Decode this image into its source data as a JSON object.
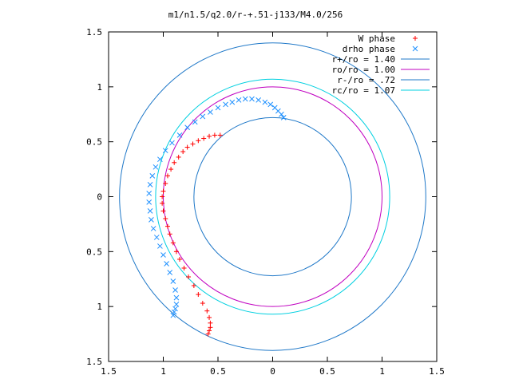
{
  "chart_data": {
    "type": "scatter",
    "title": "m1/n1.5/q2.0/r-+.51-j133/M4.0/256",
    "xlabel": "",
    "ylabel": "",
    "xlim": [
      -1.5,
      1.5
    ],
    "ylim": [
      -1.5,
      1.5
    ],
    "x_ticks": [
      {
        "value": -1.5,
        "label": "1.5"
      },
      {
        "value": -1.0,
        "label": "1"
      },
      {
        "value": -0.5,
        "label": "0.5"
      },
      {
        "value": 0,
        "label": "0"
      },
      {
        "value": 0.5,
        "label": "0.5"
      },
      {
        "value": 1.0,
        "label": "1"
      },
      {
        "value": 1.5,
        "label": "1.5"
      }
    ],
    "y_ticks": [
      {
        "value": 1.5,
        "label": "1.5"
      },
      {
        "value": 1.0,
        "label": "1"
      },
      {
        "value": 0.5,
        "label": "0.5"
      },
      {
        "value": 0,
        "label": "0"
      },
      {
        "value": -0.5,
        "label": "0.5"
      },
      {
        "value": -1.0,
        "label": "1"
      },
      {
        "value": -1.5,
        "label": "1.5"
      }
    ],
    "grid": false,
    "legend_position": "top-right",
    "series": [
      {
        "name": "W phase",
        "kind": "points",
        "marker": "plus",
        "color": "#ff0000",
        "points": [
          [
            -0.48,
            0.56
          ],
          [
            -0.53,
            0.56
          ],
          [
            -0.58,
            0.55
          ],
          [
            -0.63,
            0.53
          ],
          [
            -0.68,
            0.51
          ],
          [
            -0.73,
            0.48
          ],
          [
            -0.78,
            0.45
          ],
          [
            -0.82,
            0.41
          ],
          [
            -0.86,
            0.36
          ],
          [
            -0.9,
            0.31
          ],
          [
            -0.93,
            0.25
          ],
          [
            -0.96,
            0.19
          ],
          [
            -0.98,
            0.12
          ],
          [
            -1.0,
            0.05
          ],
          [
            -1.01,
            0.0
          ],
          [
            -1.01,
            -0.06
          ],
          [
            -1.0,
            -0.13
          ],
          [
            -0.98,
            -0.2
          ],
          [
            -0.96,
            -0.27
          ],
          [
            -0.94,
            -0.34
          ],
          [
            -0.91,
            -0.42
          ],
          [
            -0.88,
            -0.5
          ],
          [
            -0.85,
            -0.57
          ],
          [
            -0.81,
            -0.65
          ],
          [
            -0.77,
            -0.73
          ],
          [
            -0.72,
            -0.81
          ],
          [
            -0.68,
            -0.89
          ],
          [
            -0.64,
            -0.97
          ],
          [
            -0.6,
            -1.04
          ],
          [
            -0.58,
            -1.1
          ],
          [
            -0.57,
            -1.15
          ],
          [
            -0.57,
            -1.19
          ],
          [
            -0.58,
            -1.22
          ],
          [
            -0.59,
            -1.25
          ]
        ]
      },
      {
        "name": "drho phase",
        "kind": "points",
        "marker": "cross",
        "color": "#1e90ff",
        "points": [
          [
            0.1,
            0.72
          ],
          [
            0.08,
            0.75
          ],
          [
            0.05,
            0.78
          ],
          [
            0.02,
            0.81
          ],
          [
            -0.02,
            0.84
          ],
          [
            -0.07,
            0.86
          ],
          [
            -0.13,
            0.88
          ],
          [
            -0.19,
            0.89
          ],
          [
            -0.25,
            0.89
          ],
          [
            -0.31,
            0.88
          ],
          [
            -0.37,
            0.86
          ],
          [
            -0.43,
            0.84
          ],
          [
            -0.5,
            0.81
          ],
          [
            -0.57,
            0.77
          ],
          [
            -0.64,
            0.73
          ],
          [
            -0.71,
            0.68
          ],
          [
            -0.78,
            0.63
          ],
          [
            -0.85,
            0.56
          ],
          [
            -0.92,
            0.49
          ],
          [
            -0.98,
            0.42
          ],
          [
            -1.03,
            0.34
          ],
          [
            -1.07,
            0.27
          ],
          [
            -1.1,
            0.19
          ],
          [
            -1.12,
            0.11
          ],
          [
            -1.13,
            0.03
          ],
          [
            -1.13,
            -0.05
          ],
          [
            -1.12,
            -0.13
          ],
          [
            -1.11,
            -0.21
          ],
          [
            -1.09,
            -0.29
          ],
          [
            -1.06,
            -0.37
          ],
          [
            -1.03,
            -0.45
          ],
          [
            -1.0,
            -0.53
          ],
          [
            -0.97,
            -0.61
          ],
          [
            -0.94,
            -0.69
          ],
          [
            -0.91,
            -0.77
          ],
          [
            -0.89,
            -0.85
          ],
          [
            -0.88,
            -0.92
          ],
          [
            -0.88,
            -0.98
          ],
          [
            -0.89,
            -1.02
          ],
          [
            -0.9,
            -1.05
          ],
          [
            -0.91,
            -1.08
          ]
        ]
      },
      {
        "name": "r+/ro = 1.40",
        "kind": "circle",
        "radius": 1.4,
        "color": "#1f78c8"
      },
      {
        "name": "ro/ro = 1.00",
        "kind": "circle",
        "radius": 1.0,
        "color": "#c000c0"
      },
      {
        "name": "r-/ro = .72",
        "kind": "circle",
        "radius": 0.72,
        "color": "#1f78c8"
      },
      {
        "name": "rc/ro = 1.07",
        "kind": "circle",
        "radius": 1.07,
        "color": "#00d0e0"
      }
    ]
  }
}
